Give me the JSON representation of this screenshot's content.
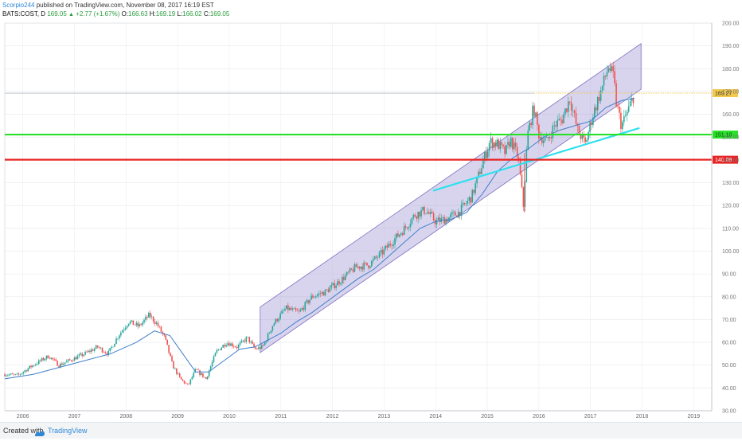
{
  "header": {
    "author": "Scorpio244",
    "published_text": "published on TradingView.com, November 08, 2017 16:19 EST",
    "symbol": "BATS:COST, D",
    "last": "169.05",
    "change_arrow": "▲",
    "change": "+2.77 (+1.67%)",
    "o_label": "O:",
    "o_value": "166.63",
    "h_label": "H:",
    "h_value": "169.19",
    "l_label": "L:",
    "l_value": "166.02",
    "c_label": "C:",
    "c_value": "169.05"
  },
  "footer": {
    "created_with": "Created with",
    "brand": "TradingView",
    "logo_icon": "tradingview-logo-icon"
  },
  "chart_data": {
    "type": "candlestick",
    "x_range": [
      2005.65,
      2019.35
    ],
    "y_range": [
      30,
      200
    ],
    "x_ticks": [
      "2006",
      "2007",
      "2008",
      "2009",
      "2010",
      "2011",
      "2012",
      "2013",
      "2014",
      "2015",
      "2016",
      "2017",
      "2018",
      "2019"
    ],
    "y_ticks": [
      "30.00",
      "40.00",
      "50.00",
      "60.00",
      "70.00",
      "80.00",
      "90.00",
      "100.00",
      "110.00",
      "120.00",
      "130.00",
      "140.00",
      "150.00",
      "160.00",
      "170.00",
      "180.00",
      "190.00",
      "200.00"
    ],
    "price_path": [
      [
        2005.65,
        46
      ],
      [
        2005.9,
        45.5
      ],
      [
        2006.2,
        50
      ],
      [
        2006.5,
        54
      ],
      [
        2006.7,
        50
      ],
      [
        2006.9,
        52
      ],
      [
        2007.2,
        55
      ],
      [
        2007.45,
        58
      ],
      [
        2007.65,
        55
      ],
      [
        2007.85,
        63
      ],
      [
        2008.05,
        69
      ],
      [
        2008.25,
        67
      ],
      [
        2008.45,
        72
      ],
      [
        2008.6,
        68
      ],
      [
        2008.75,
        62
      ],
      [
        2008.9,
        50
      ],
      [
        2009.05,
        44
      ],
      [
        2009.2,
        41
      ],
      [
        2009.35,
        48
      ],
      [
        2009.55,
        44
      ],
      [
        2009.75,
        56
      ],
      [
        2009.95,
        60
      ],
      [
        2010.15,
        58
      ],
      [
        2010.35,
        62
      ],
      [
        2010.5,
        57
      ],
      [
        2010.65,
        58
      ],
      [
        2010.85,
        68
      ],
      [
        2011.1,
        75
      ],
      [
        2011.35,
        73
      ],
      [
        2011.6,
        80
      ],
      [
        2011.85,
        82
      ],
      [
        2012.15,
        87
      ],
      [
        2012.45,
        93
      ],
      [
        2012.7,
        94
      ],
      [
        2012.95,
        99
      ],
      [
        2013.15,
        104
      ],
      [
        2013.4,
        110
      ],
      [
        2013.6,
        116
      ],
      [
        2013.8,
        118
      ],
      [
        2014.0,
        113
      ],
      [
        2014.2,
        114
      ],
      [
        2014.45,
        117
      ],
      [
        2014.7,
        124
      ],
      [
        2014.9,
        138
      ],
      [
        2015.05,
        148
      ],
      [
        2015.2,
        147
      ],
      [
        2015.35,
        143
      ],
      [
        2015.45,
        149
      ],
      [
        2015.6,
        141
      ],
      [
        2015.7,
        120
      ],
      [
        2015.78,
        151
      ],
      [
        2015.9,
        163
      ],
      [
        2016.0,
        151
      ],
      [
        2016.15,
        148
      ],
      [
        2016.3,
        155
      ],
      [
        2016.45,
        158
      ],
      [
        2016.6,
        167
      ],
      [
        2016.75,
        153
      ],
      [
        2016.9,
        147
      ],
      [
        2017.05,
        160
      ],
      [
        2017.2,
        170
      ],
      [
        2017.35,
        181
      ],
      [
        2017.45,
        176
      ],
      [
        2017.5,
        165
      ],
      [
        2017.6,
        155
      ],
      [
        2017.7,
        160
      ],
      [
        2017.85,
        169
      ]
    ],
    "moving_average": [
      [
        2005.65,
        44
      ],
      [
        2006.2,
        46
      ],
      [
        2006.7,
        49
      ],
      [
        2007.2,
        52
      ],
      [
        2007.7,
        55
      ],
      [
        2008.2,
        60
      ],
      [
        2008.55,
        65
      ],
      [
        2008.85,
        63
      ],
      [
        2009.1,
        55
      ],
      [
        2009.35,
        47
      ],
      [
        2009.6,
        47
      ],
      [
        2009.9,
        52
      ],
      [
        2010.2,
        57
      ],
      [
        2010.5,
        58
      ],
      [
        2010.75,
        61
      ],
      [
        2011.0,
        64
      ],
      [
        2011.3,
        69
      ],
      [
        2011.6,
        73
      ],
      [
        2011.9,
        78
      ],
      [
        2012.2,
        83
      ],
      [
        2012.5,
        88
      ],
      [
        2012.8,
        92
      ],
      [
        2013.1,
        98
      ],
      [
        2013.4,
        104
      ],
      [
        2013.7,
        110
      ],
      [
        2014.0,
        113
      ],
      [
        2014.3,
        114
      ],
      [
        2014.6,
        117
      ],
      [
        2014.9,
        125
      ],
      [
        2015.2,
        135
      ],
      [
        2015.5,
        141
      ],
      [
        2015.8,
        145
      ],
      [
        2016.1,
        150
      ],
      [
        2016.4,
        153
      ],
      [
        2016.7,
        155
      ],
      [
        2017.0,
        157
      ],
      [
        2017.3,
        163
      ],
      [
        2017.6,
        166
      ],
      [
        2017.85,
        167
      ]
    ],
    "channel": {
      "lower": [
        [
          2010.6,
          55.5
        ],
        [
          2017.98,
          171
        ]
      ],
      "upper": [
        [
          2010.6,
          75.5
        ],
        [
          2017.98,
          191
        ]
      ]
    },
    "trendline_cyan": [
      [
        2013.95,
        126.5
      ],
      [
        2017.95,
        154
      ]
    ],
    "levels": [
      {
        "value": 169.27,
        "label": "169.27",
        "color": "#f2c94c",
        "style": "dotted"
      },
      {
        "value": 151.1,
        "label": "151.10",
        "color": "#29e129",
        "style": "solid"
      },
      {
        "value": 140.09,
        "label": "140.09",
        "color": "#e82525",
        "style": "solid"
      }
    ],
    "colors": {
      "up": "#26a69a",
      "down": "#ef5350",
      "ma": "#3f7fc9",
      "channel_fill": "#9c8fd1",
      "cyan": "#2ee0ee"
    }
  }
}
